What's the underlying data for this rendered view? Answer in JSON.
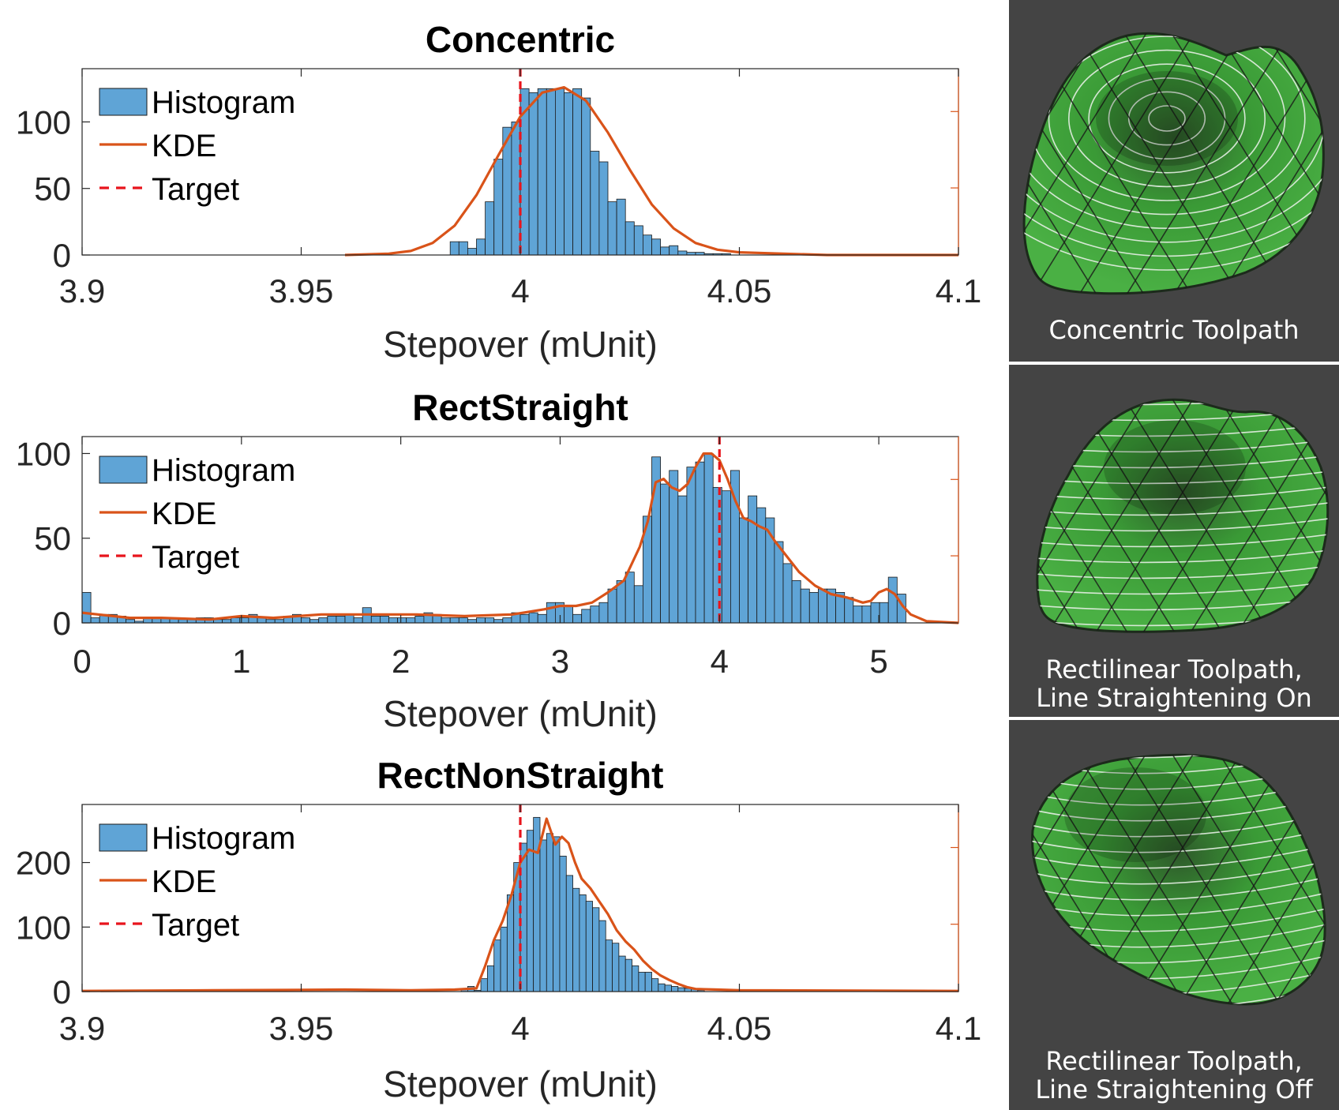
{
  "colors": {
    "bar_fill": "#5fa4d6",
    "bar_edge": "#1a1a1a",
    "kde": "#d95319",
    "target": "#e8141c",
    "panel_bg": "#444444",
    "surface": "#3fa33a"
  },
  "chart_data": [
    {
      "type": "bar",
      "title": "Concentric",
      "xlabel": "Stepover (mUnit)",
      "ylabel": "",
      "xlim": [
        3.9,
        4.1
      ],
      "ylim": [
        0,
        140
      ],
      "xticks": [
        3.9,
        3.95,
        4,
        4.05,
        4.1
      ],
      "xtick_labels": [
        "3.9",
        "3.95",
        "4",
        "4.05",
        "4.1"
      ],
      "yticks": [
        0,
        50,
        100
      ],
      "ytick_labels": [
        "0",
        "50",
        "100"
      ],
      "legend": [
        "Histogram",
        "KDE",
        "Target"
      ],
      "legend_position": "top-left",
      "target": 4.0,
      "bin_width": 0.002,
      "bins": {
        "x": [
          3.985,
          3.987,
          3.989,
          3.991,
          3.993,
          3.995,
          3.997,
          3.999,
          4.001,
          4.003,
          4.005,
          4.007,
          4.009,
          4.011,
          4.013,
          4.015,
          4.017,
          4.019,
          4.021,
          4.023,
          4.025,
          4.027,
          4.029,
          4.031,
          4.033,
          4.035,
          4.037,
          4.039,
          4.041,
          4.043,
          4.045,
          4.047
        ],
        "values": [
          10,
          10,
          5,
          12,
          40,
          72,
          96,
          100,
          125,
          122,
          125,
          125,
          125,
          122,
          125,
          118,
          78,
          70,
          40,
          42,
          25,
          22,
          15,
          12,
          6,
          7,
          3,
          2,
          2,
          1,
          1,
          1
        ]
      },
      "kde": {
        "x": [
          3.96,
          3.97,
          3.975,
          3.98,
          3.985,
          3.99,
          3.995,
          4.0,
          4.005,
          4.01,
          4.015,
          4.02,
          4.025,
          4.03,
          4.035,
          4.04,
          4.045,
          4.05,
          4.06,
          4.07,
          4.08,
          4.1
        ],
        "values": [
          0,
          1,
          3,
          9,
          22,
          45,
          75,
          104,
          122,
          126,
          116,
          92,
          64,
          38,
          20,
          9,
          4,
          2,
          1,
          0,
          0,
          0
        ]
      }
    },
    {
      "type": "bar",
      "title": "RectStraight",
      "xlabel": "Stepover (mUnit)",
      "ylabel": "",
      "xlim": [
        0,
        5.5
      ],
      "ylim": [
        0,
        110
      ],
      "xticks": [
        0,
        1,
        2,
        3,
        4,
        5
      ],
      "xtick_labels": [
        "0",
        "1",
        "2",
        "3",
        "4",
        "5"
      ],
      "yticks": [
        0,
        50,
        100
      ],
      "ytick_labels": [
        "0",
        "50",
        "100"
      ],
      "legend": [
        "Histogram",
        "KDE",
        "Target"
      ],
      "legend_position": "top-left",
      "target": 4.0,
      "bin_width": 0.055,
      "bins": {
        "x": [
          0.0275,
          0.0825,
          0.1375,
          0.1925,
          0.2475,
          0.3025,
          0.3575,
          0.4125,
          0.4675,
          0.5225,
          0.5775,
          0.6325,
          0.6875,
          0.7425,
          0.7975,
          0.8525,
          0.9075,
          0.9625,
          1.0175,
          1.0725,
          1.1275,
          1.1825,
          1.2375,
          1.2925,
          1.3475,
          1.4025,
          1.4575,
          1.5125,
          1.5675,
          1.6225,
          1.6775,
          1.7325,
          1.7875,
          1.8425,
          1.8975,
          1.9525,
          2.0075,
          2.0625,
          2.1175,
          2.1725,
          2.2275,
          2.2825,
          2.3375,
          2.3925,
          2.4475,
          2.5025,
          2.5575,
          2.6125,
          2.6675,
          2.7225,
          2.7775,
          2.8325,
          2.8875,
          2.9425,
          2.9975,
          3.0525,
          3.1075,
          3.1625,
          3.2175,
          3.2725,
          3.3275,
          3.3825,
          3.4375,
          3.4925,
          3.5475,
          3.6025,
          3.6575,
          3.7125,
          3.7675,
          3.8225,
          3.8775,
          3.9325,
          3.9875,
          4.0425,
          4.0975,
          4.1525,
          4.2075,
          4.2625,
          4.3175,
          4.3725,
          4.4275,
          4.4825,
          4.5375,
          4.5925,
          4.6475,
          4.7025,
          4.7575,
          4.8125,
          4.8675,
          4.9225,
          4.9775,
          5.0325,
          5.0875,
          5.1425
        ],
        "values": [
          18,
          3,
          5,
          5,
          4,
          2,
          1,
          3,
          3,
          3,
          3,
          2,
          2,
          3,
          3,
          2,
          2,
          3,
          3,
          5,
          3,
          2,
          2,
          4,
          5,
          3,
          2,
          3,
          4,
          4,
          5,
          3,
          9,
          4,
          4,
          3,
          3,
          3,
          4,
          6,
          5,
          3,
          3,
          3,
          2,
          3,
          3,
          2,
          3,
          6,
          5,
          6,
          5,
          12,
          12,
          10,
          5,
          8,
          10,
          12,
          20,
          25,
          30,
          22,
          63,
          98,
          82,
          90,
          75,
          92,
          95,
          100,
          80,
          78,
          90,
          62,
          75,
          68,
          62,
          48,
          35,
          25,
          20,
          18,
          20,
          20,
          18,
          15,
          10,
          10,
          12,
          12,
          27,
          17
        ]
      },
      "kde": {
        "x": [
          0,
          0.1,
          0.3,
          0.5,
          0.8,
          1.0,
          1.2,
          1.5,
          1.8,
          2.1,
          2.4,
          2.7,
          2.9,
          3.0,
          3.1,
          3.2,
          3.3,
          3.4,
          3.5,
          3.55,
          3.6,
          3.65,
          3.7,
          3.75,
          3.8,
          3.85,
          3.9,
          3.95,
          4.0,
          4.05,
          4.1,
          4.15,
          4.2,
          4.25,
          4.3,
          4.35,
          4.4,
          4.5,
          4.6,
          4.7,
          4.8,
          4.9,
          4.95,
          5.0,
          5.05,
          5.1,
          5.15,
          5.2,
          5.3,
          5.5
        ],
        "values": [
          6,
          5,
          3,
          3,
          2,
          4,
          3,
          5,
          5,
          5,
          4,
          5,
          8,
          10,
          10,
          12,
          18,
          25,
          45,
          60,
          83,
          85,
          80,
          78,
          82,
          92,
          100,
          100,
          96,
          85,
          72,
          62,
          60,
          57,
          55,
          48,
          42,
          30,
          22,
          17,
          15,
          12,
          13,
          18,
          20,
          17,
          10,
          5,
          1,
          0
        ]
      }
    },
    {
      "type": "bar",
      "title": "RectNonStraight",
      "xlabel": "Stepover (mUnit)",
      "ylabel": "",
      "xlim": [
        3.9,
        4.1
      ],
      "ylim": [
        0,
        290
      ],
      "xticks": [
        3.9,
        3.95,
        4,
        4.05,
        4.1
      ],
      "xtick_labels": [
        "3.9",
        "3.95",
        "4",
        "4.05",
        "4.1"
      ],
      "yticks": [
        0,
        100,
        200
      ],
      "ytick_labels": [
        "0",
        "100",
        "200"
      ],
      "legend": [
        "Histogram",
        "KDE",
        "Target"
      ],
      "legend_position": "top-left",
      "target": 4.0,
      "bin_width": 0.0015,
      "bins": {
        "x": [
          3.98725,
          3.98875,
          3.99025,
          3.99175,
          3.99325,
          3.99475,
          3.99625,
          3.99775,
          3.99925,
          4.00075,
          4.00225,
          4.00375,
          4.00525,
          4.00675,
          4.00825,
          4.00975,
          4.01125,
          4.01275,
          4.01425,
          4.01575,
          4.01725,
          4.01875,
          4.02025,
          4.02175,
          4.02325,
          4.02475,
          4.02625,
          4.02775,
          4.02925,
          4.03075,
          4.03225,
          4.03375,
          4.03525,
          4.03675,
          4.03825,
          4.03975,
          4.04125
        ],
        "values": [
          5,
          8,
          2,
          20,
          40,
          80,
          100,
          150,
          200,
          230,
          250,
          270,
          235,
          245,
          240,
          210,
          180,
          160,
          150,
          140,
          130,
          110,
          80,
          75,
          55,
          50,
          40,
          30,
          30,
          20,
          12,
          10,
          8,
          6,
          5,
          4,
          2
        ]
      },
      "kde": {
        "x": [
          3.9,
          3.93,
          3.96,
          3.975,
          3.985,
          3.99,
          3.992,
          3.994,
          3.996,
          3.998,
          4.0,
          4.002,
          4.004,
          4.006,
          4.008,
          4.0095,
          4.011,
          4.0125,
          4.014,
          4.016,
          4.018,
          4.02,
          4.022,
          4.024,
          4.026,
          4.028,
          4.03,
          4.032,
          4.034,
          4.036,
          4.038,
          4.04,
          4.045,
          4.05,
          4.1
        ],
        "values": [
          1,
          2,
          3,
          2,
          3,
          5,
          40,
          80,
          110,
          150,
          200,
          220,
          215,
          268,
          228,
          240,
          230,
          200,
          175,
          160,
          140,
          120,
          95,
          78,
          65,
          48,
          35,
          25,
          18,
          12,
          7,
          4,
          3,
          2,
          1
        ]
      }
    }
  ],
  "panels": [
    {
      "caption": [
        "Concentric Toolpath"
      ]
    },
    {
      "caption": [
        "Rectilinear Toolpath,",
        "Line Straightening On"
      ]
    },
    {
      "caption": [
        "Rectilinear Toolpath,",
        "Line Straightening Off"
      ]
    }
  ]
}
